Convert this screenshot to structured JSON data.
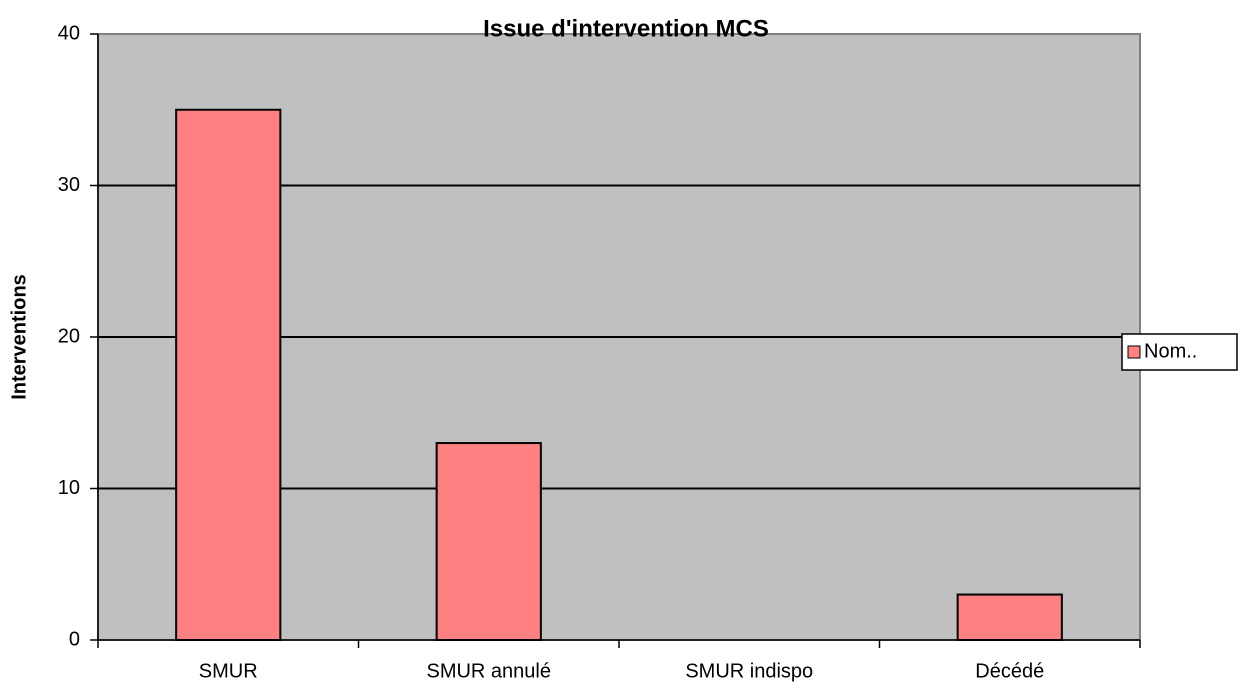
{
  "chart_data": {
    "type": "bar",
    "title": "Issue d'intervention MCS",
    "y_label": "Interventions",
    "categories": [
      "SMUR",
      "SMUR annulé",
      "SMUR indispo",
      "Décédé"
    ],
    "series": [
      {
        "name": "Nom..",
        "color": "#ff8080",
        "values": [
          35,
          13,
          0,
          3
        ]
      }
    ],
    "ylim": [
      0,
      40
    ],
    "yticks": [
      0,
      10,
      20,
      30,
      40
    ],
    "grid": true,
    "legend": "right"
  }
}
